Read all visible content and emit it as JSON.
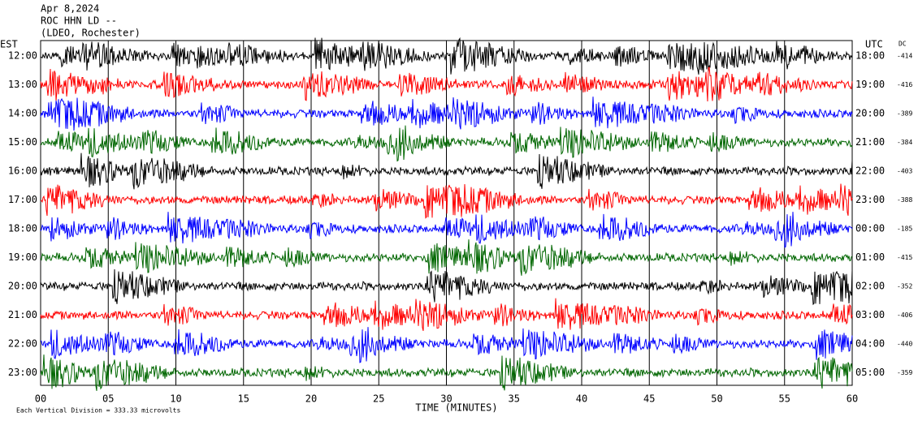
{
  "header": {
    "lines": [
      "Apr 8,2024",
      "ROC HHN LD --",
      "(LDEO, Rochester)"
    ]
  },
  "left_label": "EST",
  "right_label": "UTC",
  "dc_label": "DC",
  "rows": [
    {
      "est": "12:00",
      "utc": "18:00",
      "dc": "-414",
      "color": "#000000"
    },
    {
      "est": "13:00",
      "utc": "19:00",
      "dc": "-416",
      "color": "#ff0000"
    },
    {
      "est": "14:00",
      "utc": "20:00",
      "dc": "-389",
      "color": "#0000ff"
    },
    {
      "est": "15:00",
      "utc": "21:00",
      "dc": "-384",
      "color": "#006600"
    },
    {
      "est": "16:00",
      "utc": "22:00",
      "dc": "-403",
      "color": "#000000"
    },
    {
      "est": "17:00",
      "utc": "23:00",
      "dc": "-388",
      "color": "#ff0000"
    },
    {
      "est": "18:00",
      "utc": "00:00",
      "dc": "-185",
      "color": "#0000ff"
    },
    {
      "est": "19:00",
      "utc": "01:00",
      "dc": "-415",
      "color": "#006600"
    },
    {
      "est": "20:00",
      "utc": "02:00",
      "dc": "-352",
      "color": "#000000"
    },
    {
      "est": "21:00",
      "utc": "03:00",
      "dc": "-406",
      "color": "#ff0000"
    },
    {
      "est": "22:00",
      "utc": "04:00",
      "dc": "-440",
      "color": "#0000ff"
    },
    {
      "est": "23:00",
      "utc": "05:00",
      "dc": "-359",
      "color": "#006600"
    }
  ],
  "x_axis": {
    "ticks": [
      "00",
      "05",
      "10",
      "15",
      "20",
      "25",
      "30",
      "35",
      "40",
      "45",
      "50",
      "55",
      "60"
    ],
    "title": "TIME (MINUTES)"
  },
  "footnote": "Each Vertical Division =  333.33 microvolts"
}
